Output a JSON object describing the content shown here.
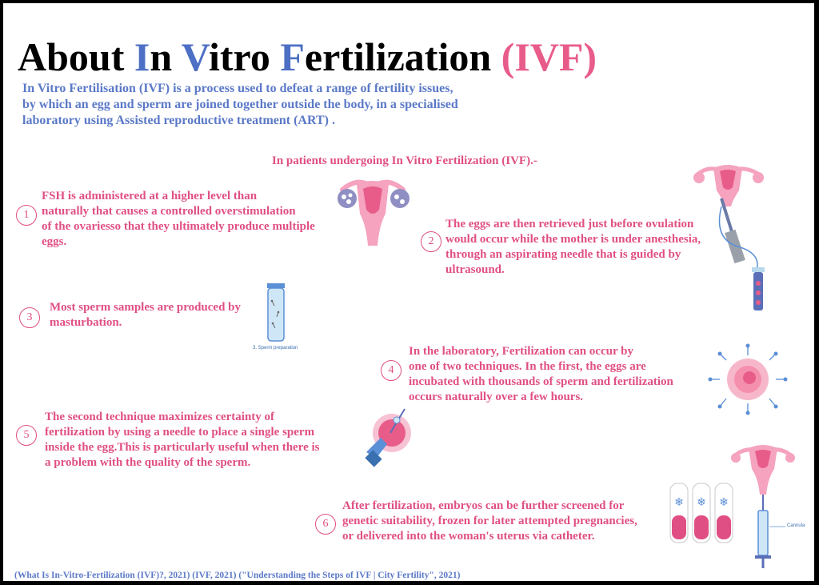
{
  "title": {
    "part1": "About ",
    "I": "I",
    "part2": "n ",
    "V": "V",
    "part3": "itro ",
    "F": "F",
    "part4": "ertilization ",
    "abbr": "(IVF)"
  },
  "intro": {
    "lines": [
      "In Vitro Fertilisation  (IVF) is a process used to defeat a range of fertility issues,",
      "by which an egg and sperm are joined together outside the body, in a specialised",
      "laboratory using Assisted reproductive treatment (ART) ."
    ]
  },
  "subtitle": "In patients undergoing In Vitro Fertilization (IVF).-",
  "steps": [
    {
      "number": "1",
      "lines": [
        "FSH is administered at a higher level than",
        "naturally that causes a controlled overstimulation",
        "of the ovariesso that they ultimately produce multiple",
        "eggs."
      ]
    },
    {
      "number": "2",
      "lines": [
        " The eggs are then retrieved just before ovulation",
        "would occur while the mother  is under anesthesia,",
        "through an aspirating needle that is guided by",
        "ultrasound."
      ]
    },
    {
      "number": "3",
      "lines": [
        "Most sperm samples are produced by",
        "masturbation."
      ]
    },
    {
      "number": "4",
      "lines": [
        "In the laboratory, Fertilization can occur by",
        "one of two techniques. In the first, the eggs are",
        "incubated with thousands of sperm and fertilization",
        "occurs naturally over a few hours."
      ]
    },
    {
      "number": "5",
      "lines": [
        "The second technique maximizes certainty of",
        "fertilization by using a needle to place a single sperm",
        "inside the egg.This is particularly useful when there is",
        "a problem with the quality of the sperm."
      ]
    },
    {
      "number": "6",
      "lines": [
        "After fertilization, embryos can be further screened for",
        "genetic suitability, frozen for later attempted pregnancies,",
        "or delivered into the woman's uterus via catheter."
      ]
    }
  ],
  "captions": {
    "sperm_prep": "3. Sperm preparation",
    "cannula": "Cannula"
  },
  "citation": "(What Is In-Vitro-Fertilization (IVF)?, 2021) (IVF, 2021) (\"Understanding the Steps of IVF | City Fertility\", 2021)",
  "colors": {
    "pink": "#e04f84",
    "blue": "#5b79c8",
    "light_pink": "#f5a3bf"
  },
  "icons": [
    "uterus-icon",
    "egg-retrieval-icon",
    "sperm-tube-icon",
    "egg-with-sperm-icon",
    "icsi-icon",
    "embryo-transfer-icon"
  ]
}
